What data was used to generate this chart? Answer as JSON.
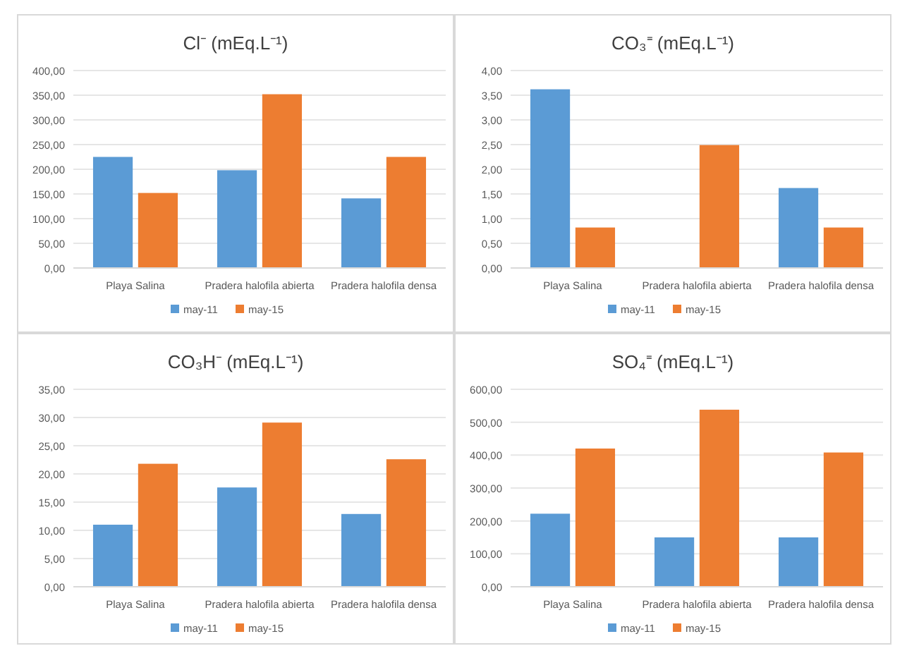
{
  "chart_data": [
    {
      "type": "bar",
      "title": "Cl⁻ (mEq.L⁻¹)",
      "categories": [
        "Playa Salina",
        "Pradera halofila abierta",
        "Pradera halofila densa"
      ],
      "series": [
        {
          "name": "may-11",
          "color": "#5b9bd5",
          "values": [
            225,
            198,
            141
          ]
        },
        {
          "name": "may-15",
          "color": "#ed7d31",
          "values": [
            152,
            352,
            225
          ]
        }
      ],
      "ylim": [
        0,
        400
      ],
      "yticks": [
        {
          "value": 0,
          "label": "0,00"
        },
        {
          "value": 50,
          "label": "50,00"
        },
        {
          "value": 100,
          "label": "100,00"
        },
        {
          "value": 150,
          "label": "150,00"
        },
        {
          "value": 200,
          "label": "200,00"
        },
        {
          "value": 250,
          "label": "250,00"
        },
        {
          "value": 300,
          "label": "300,00"
        },
        {
          "value": 350,
          "label": "350,00"
        },
        {
          "value": 400,
          "label": "400,00"
        }
      ],
      "grid": "y",
      "legend": "bottom"
    },
    {
      "type": "bar",
      "title": "CO₃⁼ (mEq.L⁻¹)",
      "categories": [
        "Playa Salina",
        "Pradera halofila abierta",
        "Pradera halofila densa"
      ],
      "series": [
        {
          "name": "may-11",
          "color": "#5b9bd5",
          "values": [
            3.62,
            0,
            1.62
          ]
        },
        {
          "name": "may-15",
          "color": "#ed7d31",
          "values": [
            0.82,
            2.49,
            0.82
          ]
        }
      ],
      "ylim": [
        0,
        4
      ],
      "yticks": [
        {
          "value": 0,
          "label": "0,00"
        },
        {
          "value": 0.5,
          "label": "0,50"
        },
        {
          "value": 1,
          "label": "1,00"
        },
        {
          "value": 1.5,
          "label": "1,50"
        },
        {
          "value": 2,
          "label": "2,00"
        },
        {
          "value": 2.5,
          "label": "2,50"
        },
        {
          "value": 3,
          "label": "3,00"
        },
        {
          "value": 3.5,
          "label": "3,50"
        },
        {
          "value": 4,
          "label": "4,00"
        }
      ],
      "grid": "y",
      "legend": "bottom"
    },
    {
      "type": "bar",
      "title": "CO₃H⁻ (mEq.L⁻¹)",
      "categories": [
        "Playa Salina",
        "Pradera halofila abierta",
        "Pradera halofila densa"
      ],
      "series": [
        {
          "name": "may-11",
          "color": "#5b9bd5",
          "values": [
            11.0,
            17.6,
            12.9
          ]
        },
        {
          "name": "may-15",
          "color": "#ed7d31",
          "values": [
            21.8,
            29.1,
            22.6
          ]
        }
      ],
      "ylim": [
        0,
        35
      ],
      "yticks": [
        {
          "value": 0,
          "label": "0,00"
        },
        {
          "value": 5,
          "label": "5,00"
        },
        {
          "value": 10,
          "label": "10,00"
        },
        {
          "value": 15,
          "label": "15,00"
        },
        {
          "value": 20,
          "label": "20,00"
        },
        {
          "value": 25,
          "label": "25,00"
        },
        {
          "value": 30,
          "label": "30,00"
        },
        {
          "value": 35,
          "label": "35,00"
        }
      ],
      "grid": "y",
      "legend": "bottom"
    },
    {
      "type": "bar",
      "title": "SO₄⁼ (mEq.L⁻¹)",
      "categories": [
        "Playa Salina",
        "Pradera halofila abierta",
        "Pradera halofila densa"
      ],
      "series": [
        {
          "name": "may-11",
          "color": "#5b9bd5",
          "values": [
            222,
            150,
            150
          ]
        },
        {
          "name": "may-15",
          "color": "#ed7d31",
          "values": [
            420,
            538,
            408
          ]
        }
      ],
      "ylim": [
        0,
        600
      ],
      "yticks": [
        {
          "value": 0,
          "label": "0,00"
        },
        {
          "value": 100,
          "label": "100,00"
        },
        {
          "value": 200,
          "label": "200,00"
        },
        {
          "value": 300,
          "label": "300,00"
        },
        {
          "value": 400,
          "label": "400,00"
        },
        {
          "value": 500,
          "label": "500,00"
        },
        {
          "value": 600,
          "label": "600,00"
        }
      ],
      "grid": "y",
      "legend": "bottom"
    }
  ]
}
